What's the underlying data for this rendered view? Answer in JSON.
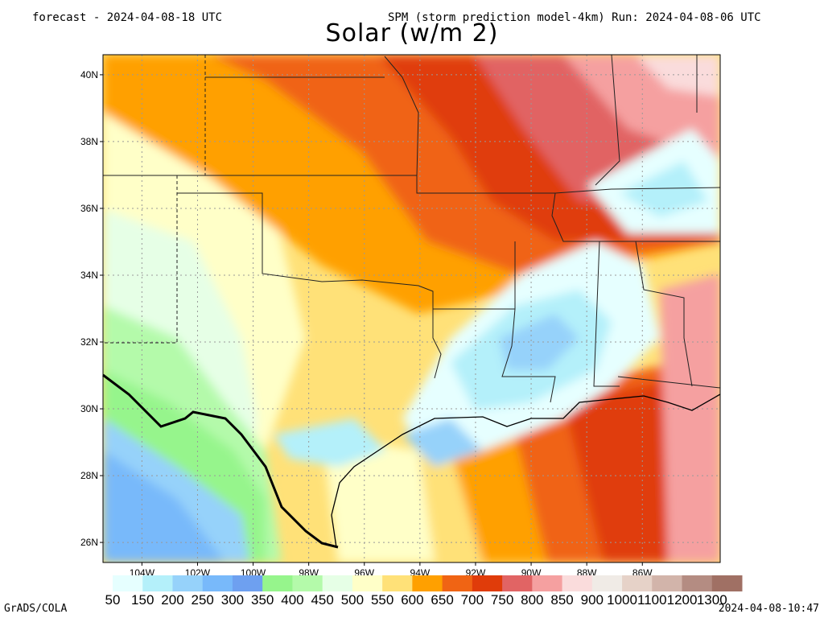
{
  "header": {
    "left": "forecast - 2024-04-08-18 UTC",
    "right": "SPM (storm prediction model-4km) Run: 2024-04-08-06 UTC"
  },
  "title": "Solar (w/m 2)",
  "map": {
    "lat_labels": [
      "40N",
      "38N",
      "36N",
      "34N",
      "32N",
      "30N",
      "28N",
      "26N"
    ],
    "lon_labels": [
      "104W",
      "102W",
      "100W",
      "98W",
      "96W",
      "94W",
      "92W",
      "90W",
      "88W",
      "86W"
    ],
    "lat_range": [
      25.4,
      40.6
    ],
    "lon_range": [
      -105.4,
      -83.2
    ]
  },
  "colorbar": {
    "labels": [
      "50",
      "150",
      "200",
      "250",
      "300",
      "350",
      "400",
      "450",
      "500",
      "550",
      "600",
      "650",
      "700",
      "750",
      "800",
      "850",
      "900",
      "1000",
      "1100",
      "1200",
      "1300"
    ],
    "colors": [
      "#e6ffff",
      "#b4f0fa",
      "#96d2fa",
      "#78b9fa",
      "#6ea0f0",
      "#96f58c",
      "#b4faaa",
      "#e6ffe6",
      "#ffffc8",
      "#ffe178",
      "#ffa000",
      "#f06414",
      "#e03c0a",
      "#e16464",
      "#f5a0a0",
      "#fadcdc",
      "#f0ebe6",
      "#e6d2c8",
      "#d2b4aa",
      "#b48c82",
      "#a07064"
    ]
  },
  "footer": {
    "credit": "GrADS/COLA",
    "timestamp": "2024-04-08-10:47"
  }
}
